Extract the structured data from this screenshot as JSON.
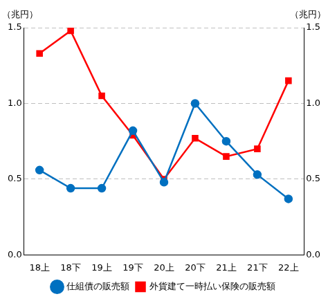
{
  "chart_data": {
    "type": "line",
    "ylabel": "（兆円）",
    "y2label": "（兆円）",
    "categories": [
      "18上",
      "18下",
      "19上",
      "19下",
      "20上",
      "20下",
      "21上",
      "21下",
      "22上"
    ],
    "series": [
      {
        "name": "仕組債の販売額",
        "color": "#0070c0",
        "marker": "circle",
        "axis": "y",
        "values": [
          0.56,
          0.44,
          0.44,
          0.82,
          0.48,
          1.0,
          0.75,
          0.53,
          0.37
        ]
      },
      {
        "name": "外貨建て一時払い保険の販売額",
        "color": "#ff0000",
        "marker": "square",
        "axis": "y2",
        "values": [
          1.33,
          1.48,
          1.05,
          0.79,
          0.5,
          0.77,
          0.65,
          0.7,
          1.15
        ]
      }
    ],
    "ylim": [
      0,
      1.5
    ],
    "yticks": [
      {
        "value": 0,
        "label": "0.0"
      },
      0.5,
      {
        "value": 1,
        "label": "1.0"
      },
      1.5
    ],
    "y2lim": [
      0,
      1.5
    ],
    "y2ticks": [
      {
        "value": 0,
        "label": "0.0"
      },
      0.5,
      {
        "value": 1,
        "label": "1.0"
      },
      1.5
    ],
    "grid": true,
    "legend": "bottom"
  }
}
